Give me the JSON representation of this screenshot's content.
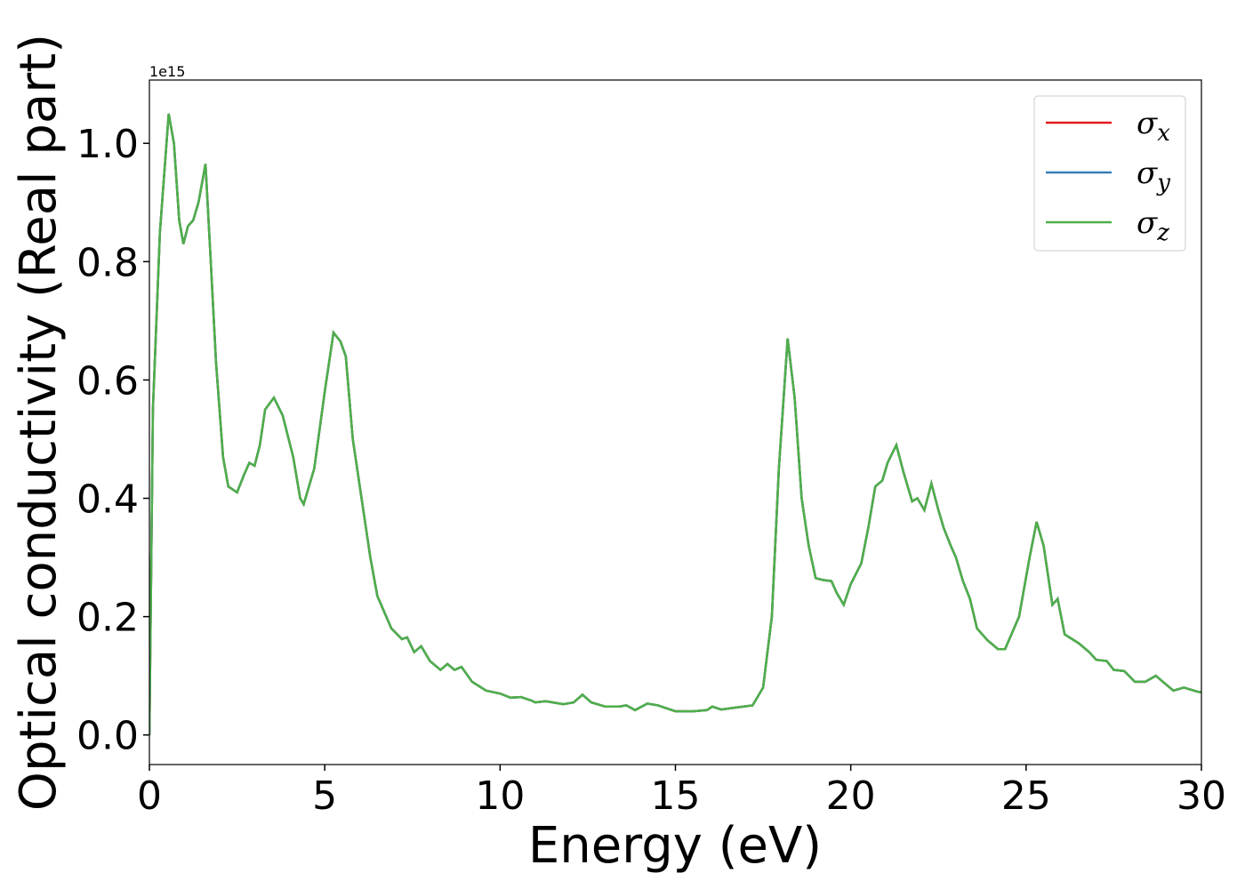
{
  "chart_data": {
    "type": "line",
    "xlabel": "Energy (eV)",
    "ylabel": "Optical conductivity (Real part)",
    "y_offset_label": "1e15",
    "xlim": [
      0,
      30
    ],
    "xticks": [
      0,
      5,
      10,
      15,
      20,
      25,
      30
    ],
    "ylim": [
      -0.05,
      1.107
    ],
    "yticks": [
      {
        "value": 0,
        "label": "0.0"
      },
      0.2,
      0.4,
      0.6,
      0.8,
      {
        "value": 1,
        "label": "1.0"
      }
    ],
    "legend": "upper right",
    "x": [
      0,
      0.1,
      0.3,
      0.55,
      0.7,
      0.85,
      0.97,
      1.1,
      1.25,
      1.4,
      1.6,
      1.75,
      1.9,
      2.1,
      2.25,
      2.5,
      2.7,
      2.85,
      3.0,
      3.15,
      3.3,
      3.55,
      3.8,
      4.1,
      4.3,
      4.4,
      4.7,
      5.0,
      5.25,
      5.45,
      5.6,
      5.8,
      6.1,
      6.3,
      6.5,
      6.9,
      7.2,
      7.35,
      7.55,
      7.75,
      8.0,
      8.3,
      8.5,
      8.7,
      8.9,
      9.2,
      9.6,
      10.0,
      10.3,
      10.6,
      10.9,
      11.0,
      11.3,
      11.8,
      12.1,
      12.35,
      12.6,
      13.0,
      13.4,
      13.6,
      13.85,
      14.2,
      14.5,
      15.0,
      15.5,
      15.9,
      16.05,
      16.3,
      16.8,
      17.2,
      17.5,
      17.75,
      17.95,
      18.2,
      18.4,
      18.6,
      18.8,
      19.0,
      19.2,
      19.45,
      19.6,
      19.8,
      20.0,
      20.3,
      20.5,
      20.7,
      20.9,
      21.05,
      21.3,
      21.5,
      21.75,
      21.9,
      22.1,
      22.3,
      22.5,
      22.65,
      22.85,
      23.0,
      23.2,
      23.4,
      23.6,
      23.9,
      24.2,
      24.4,
      24.8,
      25.1,
      25.3,
      25.5,
      25.75,
      25.9,
      26.1,
      26.5,
      26.8,
      27.0,
      27.3,
      27.5,
      27.8,
      28.1,
      28.4,
      28.7,
      28.9,
      29.2,
      29.5,
      29.9,
      30.0
    ],
    "series": [
      {
        "name": "σx",
        "color": "#e41a1c",
        "values": [
          0,
          0.55,
          0.85,
          1.05,
          1.0,
          0.87,
          0.83,
          0.86,
          0.87,
          0.9,
          0.965,
          0.8,
          0.63,
          0.47,
          0.42,
          0.41,
          0.44,
          0.46,
          0.455,
          0.49,
          0.55,
          0.57,
          0.54,
          0.47,
          0.4,
          0.39,
          0.45,
          0.58,
          0.68,
          0.665,
          0.64,
          0.5,
          0.38,
          0.3,
          0.235,
          0.18,
          0.162,
          0.165,
          0.14,
          0.15,
          0.125,
          0.11,
          0.12,
          0.11,
          0.115,
          0.09,
          0.075,
          0.07,
          0.063,
          0.064,
          0.058,
          0.055,
          0.057,
          0.052,
          0.055,
          0.068,
          0.055,
          0.048,
          0.048,
          0.05,
          0.042,
          0.053,
          0.05,
          0.04,
          0.04,
          0.042,
          0.048,
          0.043,
          0.047,
          0.05,
          0.08,
          0.2,
          0.45,
          0.67,
          0.57,
          0.4,
          0.32,
          0.265,
          0.262,
          0.26,
          0.24,
          0.22,
          0.255,
          0.29,
          0.35,
          0.42,
          0.43,
          0.46,
          0.49,
          0.445,
          0.395,
          0.4,
          0.38,
          0.425,
          0.38,
          0.35,
          0.32,
          0.3,
          0.26,
          0.23,
          0.18,
          0.16,
          0.145,
          0.145,
          0.2,
          0.3,
          0.36,
          0.32,
          0.22,
          0.23,
          0.17,
          0.155,
          0.14,
          0.127,
          0.125,
          0.11,
          0.108,
          0.09,
          0.09,
          0.1,
          0.09,
          0.075,
          0.08,
          0.073,
          0.072
        ]
      },
      {
        "name": "σy",
        "color": "#377eb8",
        "values": [
          0,
          0.55,
          0.85,
          1.05,
          1.0,
          0.87,
          0.83,
          0.86,
          0.87,
          0.9,
          0.965,
          0.8,
          0.63,
          0.47,
          0.42,
          0.41,
          0.44,
          0.46,
          0.455,
          0.49,
          0.55,
          0.57,
          0.54,
          0.47,
          0.4,
          0.39,
          0.45,
          0.58,
          0.68,
          0.665,
          0.64,
          0.5,
          0.38,
          0.3,
          0.235,
          0.18,
          0.162,
          0.165,
          0.14,
          0.15,
          0.125,
          0.11,
          0.12,
          0.11,
          0.115,
          0.09,
          0.075,
          0.07,
          0.063,
          0.064,
          0.058,
          0.055,
          0.057,
          0.052,
          0.055,
          0.068,
          0.055,
          0.048,
          0.048,
          0.05,
          0.042,
          0.053,
          0.05,
          0.04,
          0.04,
          0.042,
          0.048,
          0.043,
          0.047,
          0.05,
          0.08,
          0.2,
          0.45,
          0.67,
          0.57,
          0.4,
          0.32,
          0.265,
          0.262,
          0.26,
          0.24,
          0.22,
          0.255,
          0.29,
          0.35,
          0.42,
          0.43,
          0.46,
          0.49,
          0.445,
          0.395,
          0.4,
          0.38,
          0.425,
          0.38,
          0.35,
          0.32,
          0.3,
          0.26,
          0.23,
          0.18,
          0.16,
          0.145,
          0.145,
          0.2,
          0.3,
          0.36,
          0.32,
          0.22,
          0.23,
          0.17,
          0.155,
          0.14,
          0.127,
          0.125,
          0.11,
          0.108,
          0.09,
          0.09,
          0.1,
          0.09,
          0.075,
          0.08,
          0.073,
          0.072
        ]
      },
      {
        "name": "σz",
        "color": "#4daf4a",
        "values": [
          0,
          0.55,
          0.85,
          1.05,
          1.0,
          0.87,
          0.83,
          0.86,
          0.87,
          0.9,
          0.965,
          0.8,
          0.63,
          0.47,
          0.42,
          0.41,
          0.44,
          0.46,
          0.455,
          0.49,
          0.55,
          0.57,
          0.54,
          0.47,
          0.4,
          0.39,
          0.45,
          0.58,
          0.68,
          0.665,
          0.64,
          0.5,
          0.38,
          0.3,
          0.235,
          0.18,
          0.162,
          0.165,
          0.14,
          0.15,
          0.125,
          0.11,
          0.12,
          0.11,
          0.115,
          0.09,
          0.075,
          0.07,
          0.063,
          0.064,
          0.058,
          0.055,
          0.057,
          0.052,
          0.055,
          0.068,
          0.055,
          0.048,
          0.048,
          0.05,
          0.042,
          0.053,
          0.05,
          0.04,
          0.04,
          0.042,
          0.048,
          0.043,
          0.047,
          0.05,
          0.08,
          0.2,
          0.45,
          0.67,
          0.57,
          0.4,
          0.32,
          0.265,
          0.262,
          0.26,
          0.24,
          0.22,
          0.255,
          0.29,
          0.35,
          0.42,
          0.43,
          0.46,
          0.49,
          0.445,
          0.395,
          0.4,
          0.38,
          0.425,
          0.38,
          0.35,
          0.32,
          0.3,
          0.26,
          0.23,
          0.18,
          0.16,
          0.145,
          0.145,
          0.2,
          0.3,
          0.36,
          0.32,
          0.22,
          0.23,
          0.17,
          0.155,
          0.14,
          0.127,
          0.125,
          0.11,
          0.108,
          0.09,
          0.09,
          0.1,
          0.09,
          0.075,
          0.08,
          0.073,
          0.072
        ]
      }
    ]
  }
}
